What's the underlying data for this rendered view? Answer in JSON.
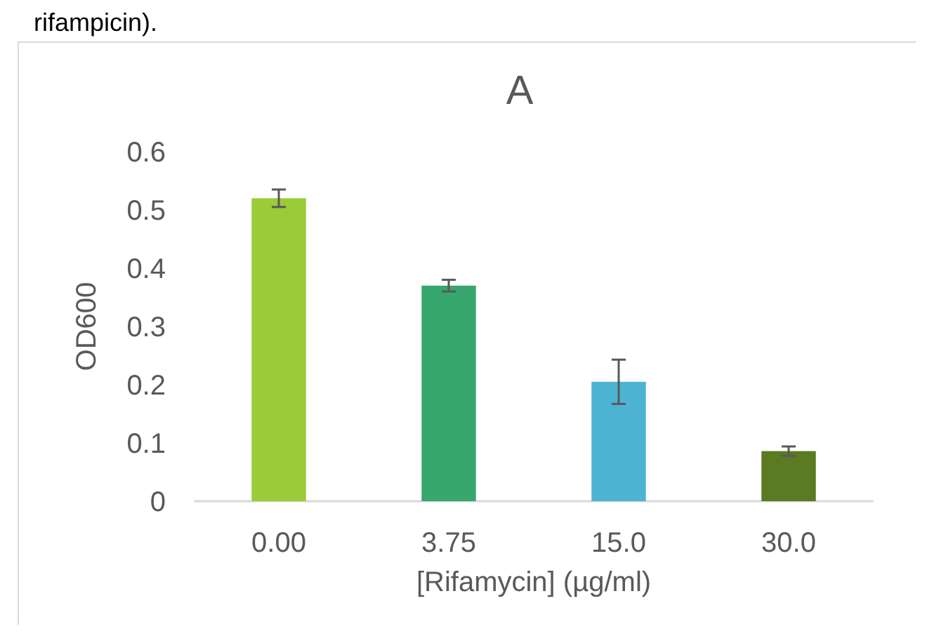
{
  "chart_data": {
    "type": "bar",
    "title": "A",
    "xlabel": "[Rifamycin] (µg/ml)",
    "ylabel": "OD600",
    "categories": [
      "0.00",
      "3.75",
      "15.0",
      "30.0"
    ],
    "values": [
      0.52,
      0.37,
      0.205,
      0.086
    ],
    "errors": [
      0.015,
      0.01,
      0.038,
      0.008
    ],
    "colors": [
      "#9acb38",
      "#38a76e",
      "#4db3d3",
      "#5c7a22"
    ],
    "ylim": [
      0,
      0.6
    ],
    "yticks": [
      0,
      0.1,
      0.2,
      0.3,
      0.4,
      0.5,
      0.6
    ],
    "grid": false,
    "annotations": [
      "rifampicin)."
    ]
  }
}
